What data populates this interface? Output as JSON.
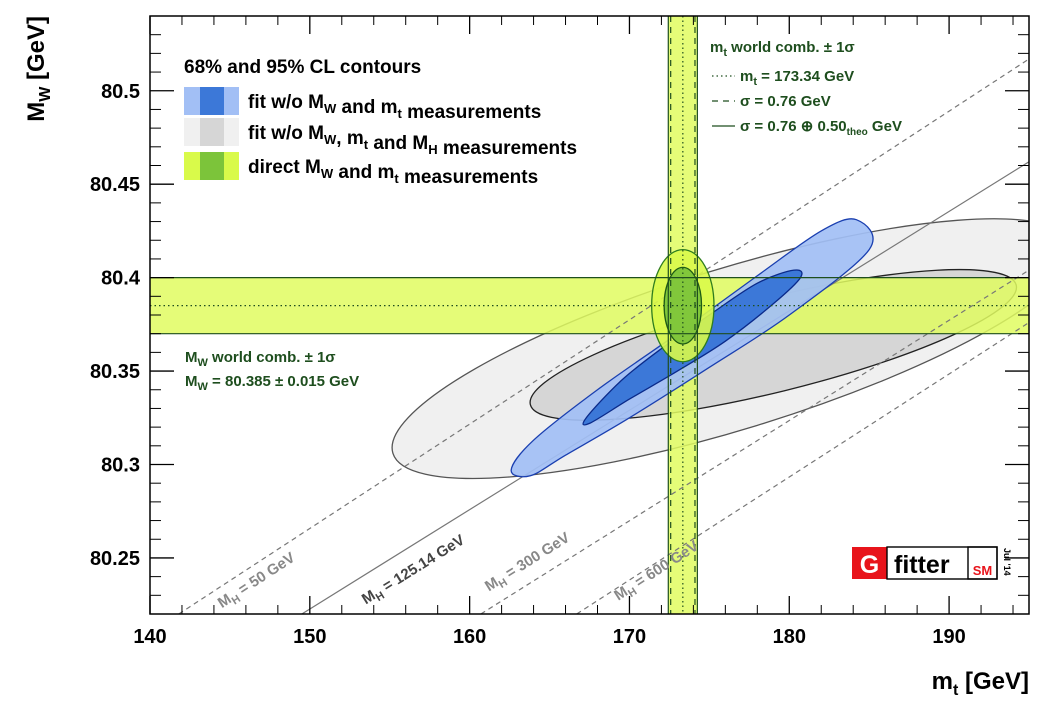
{
  "chart_data": {
    "type": "contour",
    "title": "",
    "xlabel": "m_t [GeV]",
    "ylabel": "M_W [GeV]",
    "xlim": [
      140,
      195
    ],
    "ylim": [
      80.22,
      80.54
    ],
    "xticks": [
      140,
      150,
      160,
      170,
      180,
      190
    ],
    "yticks": [
      80.25,
      80.3,
      80.35,
      80.4,
      80.45,
      80.5
    ],
    "ytick_labels": [
      "80.25",
      "80.3",
      "80.35",
      "80.4",
      "80.45",
      "80.5"
    ],
    "legend": {
      "title": "68% and 95% CL contours",
      "entries": [
        {
          "name": "fit w/o M_W and m_t measurements",
          "color_light": "#a2bff5",
          "color_dark": "#3c78d8"
        },
        {
          "name": "fit w/o M_W, m_t and M_H measurements",
          "color_light": "#f0f0f0",
          "color_dark": "#d6d6d6"
        },
        {
          "name": "direct M_W and m_t measurements",
          "color_light": "#d9fa4a",
          "color_dark": "#7cc43a"
        }
      ]
    },
    "series": [
      {
        "name": "fit w/o M_W and m_t measurements",
        "level": "95%",
        "color": "#a2bff5",
        "x": [
          163.8,
          166,
          170,
          175,
          180,
          185,
          184.2,
          182,
          178,
          173,
          168,
          164,
          162.6
        ],
        "y": [
          80.294,
          80.305,
          80.325,
          80.352,
          80.38,
          80.415,
          80.431,
          80.425,
          80.401,
          80.37,
          80.34,
          80.313,
          80.297
        ]
      },
      {
        "name": "fit w/o M_W and m_t measurements",
        "level": "68%",
        "color": "#3c78d8",
        "x": [
          167.5,
          170,
          173,
          176,
          179,
          180.7,
          180.3,
          178,
          175,
          172,
          169.5,
          167.3
        ],
        "y": [
          80.322,
          80.335,
          80.35,
          80.366,
          80.386,
          80.4,
          80.404,
          80.397,
          80.38,
          80.362,
          80.345,
          80.325
        ]
      },
      {
        "name": "fit w/o M_W, m_t and M_H measurements",
        "level": "95%",
        "color": "#f0f0f0",
        "ellipse": {
          "cx": 176.5,
          "cy": 80.362,
          "major_axis_ends": [
            [
              155.2,
              80.306
            ],
            [
              197.8,
              80.418
            ]
          ],
          "minor_half_width_mw": 0.045
        }
      },
      {
        "name": "fit w/o M_W, m_t and M_H measurements",
        "level": "68%",
        "color": "#d6d6d6",
        "ellipse": {
          "cx": 179,
          "cy": 80.364,
          "major_axis_ends": [
            [
              163.8,
              80.332
            ],
            [
              194.2,
              80.396
            ]
          ],
          "minor_half_width_mw": 0.026
        }
      },
      {
        "name": "direct M_W and m_t measurements",
        "level": "95%",
        "color": "#d9fa4a",
        "ellipse": {
          "cx": 173.34,
          "cy": 80.385,
          "rx_mt": 1.95,
          "ry_mw": 0.03
        }
      },
      {
        "name": "direct M_W and m_t measurements",
        "level": "68%",
        "color": "#7cc43a",
        "ellipse": {
          "cx": 173.34,
          "cy": 80.385,
          "rx_mt": 1.17,
          "ry_mw": 0.0205
        }
      }
    ],
    "bands": [
      {
        "name": "M_W world comb. ± 1σ",
        "orientation": "horizontal",
        "center": 80.385,
        "low": 80.37,
        "high": 80.4,
        "color": "#e0fb60"
      },
      {
        "name": "m_t world comb. ± 1σ",
        "orientation": "vertical",
        "center": 173.34,
        "low": 172.58,
        "high": 174.1,
        "theo_low": 172.43,
        "theo_high": 174.25,
        "color": "#e0fb60"
      }
    ],
    "mh_lines": [
      {
        "label": "M_H = 50 GeV",
        "style": "dashed",
        "x": [
          141.8,
          195
        ],
        "y": [
          80.22,
          80.517
        ],
        "label_at": [
          144.5,
          80.223
        ]
      },
      {
        "label": "M_H = 125.14 GeV",
        "style": "solid",
        "x": [
          149.5,
          195
        ],
        "y": [
          80.22,
          80.462
        ],
        "label_at": [
          153.5,
          80.225
        ]
      },
      {
        "label": "M_H = 300 GeV",
        "style": "dashed",
        "x": [
          160.7,
          195
        ],
        "y": [
          80.22,
          80.404
        ],
        "label_at": [
          161.2,
          80.232
        ]
      },
      {
        "label": "M_H = 600 GeV",
        "style": "dashed",
        "x": [
          166.7,
          195
        ],
        "y": [
          80.22,
          80.376
        ],
        "label_at": [
          169.3,
          80.227
        ]
      }
    ],
    "annotations": {
      "mw_world_title": "M_W world comb. ± 1σ",
      "mw_world_value": "M_W = 80.385 ± 0.015 GeV",
      "mt_world_title": "m_t world comb. ± 1σ",
      "mt_value": "m_t = 173.34 GeV",
      "mt_sigma": "σ = 0.76 GeV",
      "mt_sigma_theo": "σ = 0.76 ⊕ 0.50_theo GeV"
    },
    "logo": {
      "g": "G",
      "fitter": "fitter",
      "sm": "SM",
      "date": "Jul '14"
    }
  }
}
